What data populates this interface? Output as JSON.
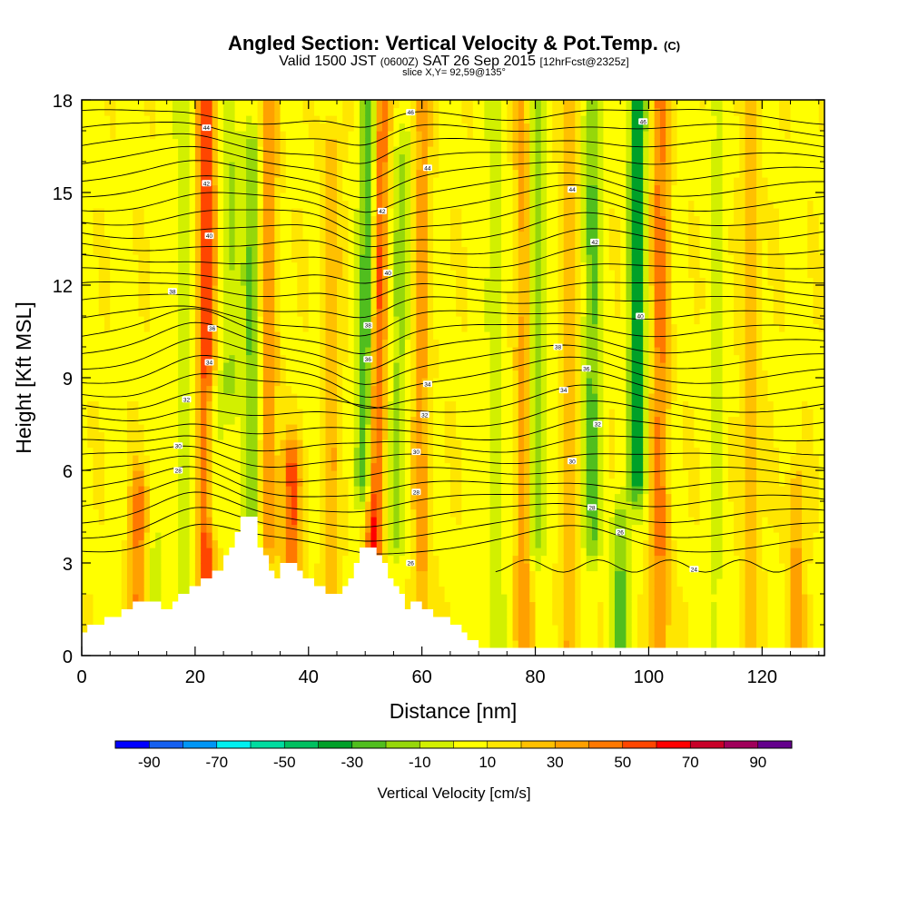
{
  "title": {
    "main": "Angled Section: Vertical Velocity & Pot.Temp.",
    "main_unit": "(C)",
    "valid_prefix": "Valid 1500 JST",
    "valid_utc": "(0600Z)",
    "valid_date": "SAT 26 Sep 2015",
    "forecast": "[12hrFcst@2325z]",
    "slice": "slice X,Y= 92,59@135°"
  },
  "chart_data": {
    "type": "heatmap",
    "xlabel": "Distance [nm]",
    "ylabel": "Height [Kft MSL]",
    "xlim": [
      0,
      131
    ],
    "ylim": [
      0,
      18
    ],
    "x_ticks": [
      0,
      20,
      40,
      60,
      80,
      100,
      120
    ],
    "y_ticks": [
      0,
      3,
      6,
      9,
      12,
      15,
      18
    ],
    "colorbar": {
      "label": "Vertical Velocity [cm/s]",
      "tick_labels": [
        -90,
        -70,
        -50,
        -30,
        -10,
        10,
        30,
        50,
        70,
        90
      ],
      "bins": [
        -100,
        -90,
        -80,
        -70,
        -60,
        -50,
        -40,
        -30,
        -20,
        -10,
        0,
        10,
        20,
        30,
        40,
        50,
        60,
        70,
        80,
        90,
        100
      ],
      "colors": [
        "#0000ff",
        "#1560f0",
        "#0096f5",
        "#00f0f0",
        "#00dca0",
        "#00c060",
        "#00a028",
        "#50be1e",
        "#96d70a",
        "#d2f000",
        "#ffff00",
        "#ffe600",
        "#ffc000",
        "#ffa000",
        "#ff7800",
        "#ff4600",
        "#ff0000",
        "#c80028",
        "#a0005a",
        "#64008c"
      ]
    },
    "vertical_velocity_features": [
      {
        "x": 10,
        "z": [
          0,
          5
        ],
        "w": 35
      },
      {
        "x": 13,
        "z": [
          0,
          3
        ],
        "w": -15
      },
      {
        "x": 18,
        "z": [
          1,
          18
        ],
        "w": -15
      },
      {
        "x": 22,
        "z": [
          3,
          18
        ],
        "w": 55
      },
      {
        "x": 23,
        "z": [
          5,
          8
        ],
        "w": -35
      },
      {
        "x": 26,
        "z": [
          9,
          18
        ],
        "w": -20
      },
      {
        "x": 30,
        "z": [
          4,
          16
        ],
        "w": -30
      },
      {
        "x": 33,
        "z": [
          4,
          18
        ],
        "w": 30
      },
      {
        "x": 37,
        "z": [
          2,
          6
        ],
        "w": 45
      },
      {
        "x": 44,
        "z": [
          2,
          16
        ],
        "w": 20
      },
      {
        "x": 50.5,
        "z": [
          6,
          18
        ],
        "w": -50
      },
      {
        "x": 52,
        "z": [
          3,
          18
        ],
        "w": 55
      },
      {
        "x": 56,
        "z": [
          4,
          16
        ],
        "w": -20
      },
      {
        "x": 60,
        "z": [
          0,
          18
        ],
        "w": 25
      },
      {
        "x": 73,
        "z": [
          0,
          18
        ],
        "w": -15
      },
      {
        "x": 78,
        "z": [
          0,
          18
        ],
        "w": 30
      },
      {
        "x": 80,
        "z": [
          4,
          18
        ],
        "w": -30
      },
      {
        "x": 86,
        "z": [
          0,
          18
        ],
        "w": 20
      },
      {
        "x": 90,
        "z": [
          4,
          18
        ],
        "w": -30
      },
      {
        "x": 95,
        "z": [
          0,
          4
        ],
        "w": -30
      },
      {
        "x": 98,
        "z": [
          6,
          18
        ],
        "w": -45
      },
      {
        "x": 102,
        "z": [
          0,
          18
        ],
        "w": 35
      },
      {
        "x": 112,
        "z": [
          0,
          18
        ],
        "w": -10
      },
      {
        "x": 118,
        "z": [
          0,
          18
        ],
        "w": 20
      },
      {
        "x": 126,
        "z": [
          0,
          5
        ],
        "w": 25
      }
    ],
    "isentrope_labels": [
      {
        "x": 22,
        "z": 17.1,
        "text": "44"
      },
      {
        "x": 22,
        "z": 15.3,
        "text": "42"
      },
      {
        "x": 22.5,
        "z": 13.6,
        "text": "40"
      },
      {
        "x": 16,
        "z": 11.8,
        "text": "38"
      },
      {
        "x": 23,
        "z": 10.6,
        "text": "36"
      },
      {
        "x": 22.5,
        "z": 9.5,
        "text": "34"
      },
      {
        "x": 18.5,
        "z": 8.3,
        "text": "32"
      },
      {
        "x": 17,
        "z": 6.8,
        "text": "30"
      },
      {
        "x": 17,
        "z": 6.0,
        "text": "28"
      },
      {
        "x": 58,
        "z": 17.6,
        "text": "46"
      },
      {
        "x": 61,
        "z": 15.8,
        "text": "44"
      },
      {
        "x": 53,
        "z": 14.4,
        "text": "42"
      },
      {
        "x": 54,
        "z": 12.4,
        "text": "40"
      },
      {
        "x": 50.5,
        "z": 10.7,
        "text": "38"
      },
      {
        "x": 50.5,
        "z": 9.6,
        "text": "36"
      },
      {
        "x": 61,
        "z": 8.8,
        "text": "34"
      },
      {
        "x": 60.5,
        "z": 7.8,
        "text": "32"
      },
      {
        "x": 59,
        "z": 6.6,
        "text": "30"
      },
      {
        "x": 59,
        "z": 5.3,
        "text": "28"
      },
      {
        "x": 58,
        "z": 3.0,
        "text": "26"
      },
      {
        "x": 99,
        "z": 17.3,
        "text": "46"
      },
      {
        "x": 86.5,
        "z": 15.1,
        "text": "44"
      },
      {
        "x": 90.5,
        "z": 13.4,
        "text": "42"
      },
      {
        "x": 98.5,
        "z": 11.0,
        "text": "40"
      },
      {
        "x": 84,
        "z": 10.0,
        "text": "38"
      },
      {
        "x": 89,
        "z": 9.3,
        "text": "36"
      },
      {
        "x": 85,
        "z": 8.6,
        "text": "34"
      },
      {
        "x": 91,
        "z": 7.5,
        "text": "32"
      },
      {
        "x": 86.5,
        "z": 6.3,
        "text": "30"
      },
      {
        "x": 90,
        "z": 4.8,
        "text": "28"
      },
      {
        "x": 95,
        "z": 4.0,
        "text": "26"
      },
      {
        "x": 108,
        "z": 2.8,
        "text": "24"
      }
    ],
    "terrain": [
      [
        0,
        0.8
      ],
      [
        2,
        1.0
      ],
      [
        5,
        1.2
      ],
      [
        7,
        1.5
      ],
      [
        9,
        1.7
      ],
      [
        13,
        1.7
      ],
      [
        15,
        1.4
      ],
      [
        17,
        1.9
      ],
      [
        19,
        2.2
      ],
      [
        22,
        2.5
      ],
      [
        24,
        2.8
      ],
      [
        26,
        3.5
      ],
      [
        28,
        4.6
      ],
      [
        30,
        4.5
      ],
      [
        31,
        3.5
      ],
      [
        33,
        2.8
      ],
      [
        34,
        2.5
      ],
      [
        35,
        3.0
      ],
      [
        37,
        2.9
      ],
      [
        39,
        2.6
      ],
      [
        41,
        2.3
      ],
      [
        43,
        2.0
      ],
      [
        45,
        2.0
      ],
      [
        47,
        2.5
      ],
      [
        49,
        3.5
      ],
      [
        51,
        3.6
      ],
      [
        52,
        3.3
      ],
      [
        54,
        2.5
      ],
      [
        56,
        2.1
      ],
      [
        57,
        1.6
      ],
      [
        59,
        1.7
      ],
      [
        61,
        1.4
      ],
      [
        63,
        1.3
      ],
      [
        66,
        1.0
      ],
      [
        68,
        0.5
      ],
      [
        70,
        0.3
      ],
      [
        131,
        0.3
      ]
    ]
  }
}
